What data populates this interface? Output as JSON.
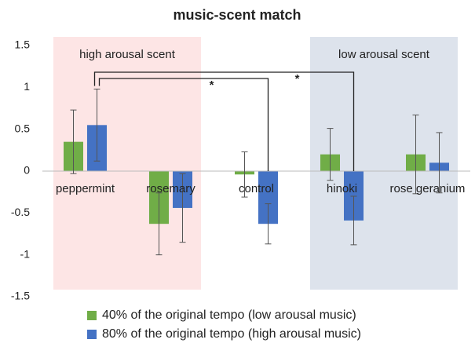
{
  "chart_data": {
    "type": "bar",
    "title": "music-scent match",
    "categories": [
      "peppermint",
      "rosemary",
      "control",
      "hinoki",
      "rose geranium"
    ],
    "series": [
      {
        "name": "40% of the original tempo (low arousal music)",
        "color": "#70ad47",
        "values": [
          0.35,
          -0.63,
          -0.04,
          0.2,
          0.2
        ],
        "errors": [
          0.38,
          0.37,
          0.27,
          0.31,
          0.47
        ]
      },
      {
        "name": "80% of the original tempo (high arousal music)",
        "color": "#4472c4",
        "values": [
          0.55,
          -0.44,
          -0.63,
          -0.59,
          0.1
        ],
        "errors": [
          0.43,
          0.41,
          0.24,
          0.29,
          0.36
        ]
      }
    ],
    "ylim": [
      -1.5,
      1.5
    ],
    "yticks": [
      -1.5,
      -1,
      -0.5,
      0,
      0.5,
      1,
      1.5
    ],
    "regions": [
      {
        "label": "high arousal scent",
        "color": "#fde5e5",
        "start": 0,
        "end": 1
      },
      {
        "label": "low arousal scent",
        "color": "#dde3ec",
        "start": 3,
        "end": 4
      }
    ],
    "significance": [
      {
        "label": "*",
        "series": 1,
        "from": 0,
        "to": 2
      },
      {
        "label": "*",
        "series": 1,
        "from": 0,
        "to": 3
      }
    ]
  }
}
